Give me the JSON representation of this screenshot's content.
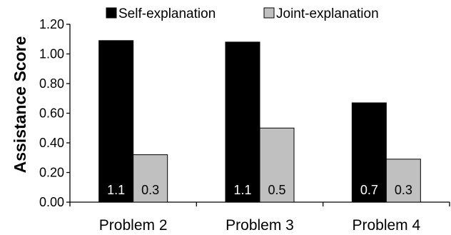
{
  "chart_data": {
    "type": "bar",
    "title": "",
    "xlabel": "",
    "ylabel": "Assistance Score",
    "ylim": [
      0,
      1.2
    ],
    "yticks": [
      "0.00",
      "0.20",
      "0.40",
      "0.60",
      "0.80",
      "1.00",
      "1.20"
    ],
    "grid": false,
    "legend_position": "top",
    "categories": [
      "Problem 2",
      "Problem 3",
      "Problem 4"
    ],
    "series": [
      {
        "name": "Self-explanation",
        "color": "#000000",
        "values": [
          1.09,
          1.08,
          0.67
        ],
        "data_labels": [
          "1.1",
          "1.1",
          "0.7"
        ],
        "label_color": "#ffffff"
      },
      {
        "name": "Joint-explanation",
        "color": "#c0c0c0",
        "values": [
          0.32,
          0.5,
          0.29
        ],
        "data_labels": [
          "0.3",
          "0.5",
          "0.3"
        ],
        "label_color": "#000000"
      }
    ]
  }
}
